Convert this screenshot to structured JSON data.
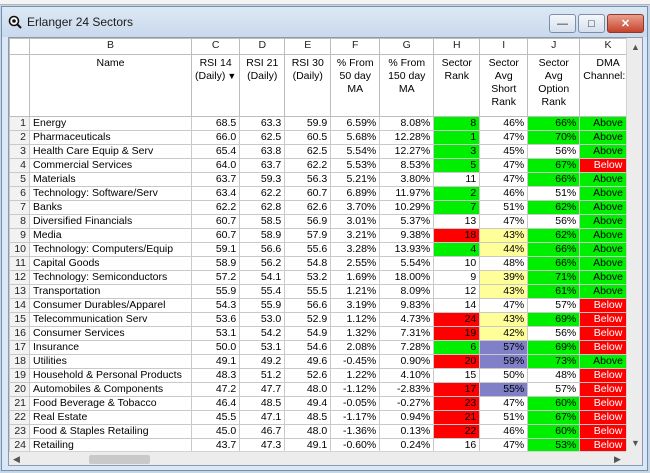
{
  "window": {
    "title": "Erlanger 24 Sectors",
    "minimize": "—",
    "maximize": "□",
    "close": "✕"
  },
  "colors": {
    "green": "#00ee00",
    "red": "#ff0000",
    "yellow": "#ffff99",
    "blue": "#8080c8",
    "white": "#ffffff"
  },
  "columns": [
    "B",
    "C",
    "D",
    "E",
    "F",
    "G",
    "H",
    "I",
    "J",
    "K"
  ],
  "headers": [
    "Name",
    "RSI 14 (Daily)",
    "RSI 21 (Daily)",
    "RSI 30 (Daily)",
    "% From 50 day MA",
    "% From 150 day MA",
    "Sector Rank",
    "Sector Avg Short Rank",
    "Sector Avg Option Rank",
    "DMA Channel:D"
  ],
  "rows": [
    {
      "n": "1",
      "name": "Energy",
      "rsi14": "68.5",
      "rsi21": "63.3",
      "rsi30": "59.9",
      "ma50": "6.59%",
      "ma150": "8.08%",
      "rank": "8",
      "rank_c": "green",
      "short": "46%",
      "short_c": "white",
      "opt": "66%",
      "opt_c": "green",
      "dma": "Above",
      "dma_c": "green"
    },
    {
      "n": "2",
      "name": "Pharmaceuticals",
      "rsi14": "66.0",
      "rsi21": "62.5",
      "rsi30": "60.5",
      "ma50": "5.68%",
      "ma150": "12.28%",
      "rank": "1",
      "rank_c": "green",
      "short": "47%",
      "short_c": "white",
      "opt": "70%",
      "opt_c": "green",
      "dma": "Above",
      "dma_c": "green"
    },
    {
      "n": "3",
      "name": "Health Care Equip & Serv",
      "rsi14": "65.4",
      "rsi21": "63.8",
      "rsi30": "62.5",
      "ma50": "5.54%",
      "ma150": "12.27%",
      "rank": "3",
      "rank_c": "green",
      "short": "45%",
      "short_c": "white",
      "opt": "56%",
      "opt_c": "white",
      "dma": "Above",
      "dma_c": "green"
    },
    {
      "n": "4",
      "name": "Commercial Services",
      "rsi14": "64.0",
      "rsi21": "63.7",
      "rsi30": "62.2",
      "ma50": "5.53%",
      "ma150": "8.53%",
      "rank": "5",
      "rank_c": "green",
      "short": "47%",
      "short_c": "white",
      "opt": "67%",
      "opt_c": "green",
      "dma": "Below",
      "dma_c": "red"
    },
    {
      "n": "5",
      "name": "Materials",
      "rsi14": "63.7",
      "rsi21": "59.3",
      "rsi30": "56.3",
      "ma50": "5.21%",
      "ma150": "3.80%",
      "rank": "11",
      "rank_c": "white",
      "short": "47%",
      "short_c": "white",
      "opt": "66%",
      "opt_c": "green",
      "dma": "Above",
      "dma_c": "green"
    },
    {
      "n": "6",
      "name": "Technology: Software/Serv",
      "rsi14": "63.4",
      "rsi21": "62.2",
      "rsi30": "60.7",
      "ma50": "6.89%",
      "ma150": "11.97%",
      "rank": "2",
      "rank_c": "green",
      "short": "46%",
      "short_c": "white",
      "opt": "51%",
      "opt_c": "white",
      "dma": "Above",
      "dma_c": "green"
    },
    {
      "n": "7",
      "name": "Banks",
      "rsi14": "62.2",
      "rsi21": "62.8",
      "rsi30": "62.6",
      "ma50": "3.70%",
      "ma150": "10.29%",
      "rank": "7",
      "rank_c": "green",
      "short": "51%",
      "short_c": "white",
      "opt": "62%",
      "opt_c": "green",
      "dma": "Above",
      "dma_c": "green"
    },
    {
      "n": "8",
      "name": "Diversified Financials",
      "rsi14": "60.7",
      "rsi21": "58.5",
      "rsi30": "56.9",
      "ma50": "3.01%",
      "ma150": "5.37%",
      "rank": "13",
      "rank_c": "white",
      "short": "47%",
      "short_c": "white",
      "opt": "56%",
      "opt_c": "white",
      "dma": "Above",
      "dma_c": "green"
    },
    {
      "n": "9",
      "name": "Media",
      "rsi14": "60.7",
      "rsi21": "58.9",
      "rsi30": "57.9",
      "ma50": "3.21%",
      "ma150": "9.38%",
      "rank": "18",
      "rank_c": "red",
      "short": "43%",
      "short_c": "yellow",
      "opt": "62%",
      "opt_c": "green",
      "dma": "Above",
      "dma_c": "green"
    },
    {
      "n": "10",
      "name": "Technology: Computers/Equip",
      "rsi14": "59.1",
      "rsi21": "56.6",
      "rsi30": "55.6",
      "ma50": "3.28%",
      "ma150": "13.93%",
      "rank": "4",
      "rank_c": "green",
      "short": "44%",
      "short_c": "yellow",
      "opt": "66%",
      "opt_c": "green",
      "dma": "Above",
      "dma_c": "green"
    },
    {
      "n": "11",
      "name": "Capital Goods",
      "rsi14": "58.9",
      "rsi21": "56.2",
      "rsi30": "54.8",
      "ma50": "2.55%",
      "ma150": "5.54%",
      "rank": "10",
      "rank_c": "white",
      "short": "48%",
      "short_c": "white",
      "opt": "66%",
      "opt_c": "green",
      "dma": "Above",
      "dma_c": "green"
    },
    {
      "n": "12",
      "name": "Technology: Semiconductors",
      "rsi14": "57.2",
      "rsi21": "54.1",
      "rsi30": "53.2",
      "ma50": "1.69%",
      "ma150": "18.00%",
      "rank": "9",
      "rank_c": "white",
      "short": "39%",
      "short_c": "yellow",
      "opt": "71%",
      "opt_c": "green",
      "dma": "Above",
      "dma_c": "green"
    },
    {
      "n": "13",
      "name": "Transportation",
      "rsi14": "55.9",
      "rsi21": "55.4",
      "rsi30": "55.5",
      "ma50": "1.21%",
      "ma150": "8.09%",
      "rank": "12",
      "rank_c": "white",
      "short": "43%",
      "short_c": "yellow",
      "opt": "61%",
      "opt_c": "green",
      "dma": "Above",
      "dma_c": "green"
    },
    {
      "n": "14",
      "name": "Consumer Durables/Apparel",
      "rsi14": "54.3",
      "rsi21": "55.9",
      "rsi30": "56.6",
      "ma50": "3.19%",
      "ma150": "9.83%",
      "rank": "14",
      "rank_c": "white",
      "short": "47%",
      "short_c": "white",
      "opt": "57%",
      "opt_c": "white",
      "dma": "Below",
      "dma_c": "red"
    },
    {
      "n": "15",
      "name": "Telecommunication Serv",
      "rsi14": "53.6",
      "rsi21": "53.0",
      "rsi30": "52.9",
      "ma50": "1.12%",
      "ma150": "4.73%",
      "rank": "24",
      "rank_c": "red",
      "short": "43%",
      "short_c": "yellow",
      "opt": "69%",
      "opt_c": "green",
      "dma": "Below",
      "dma_c": "red"
    },
    {
      "n": "16",
      "name": "Consumer Services",
      "rsi14": "53.1",
      "rsi21": "54.2",
      "rsi30": "54.9",
      "ma50": "1.32%",
      "ma150": "7.31%",
      "rank": "19",
      "rank_c": "red",
      "short": "42%",
      "short_c": "yellow",
      "opt": "56%",
      "opt_c": "white",
      "dma": "Below",
      "dma_c": "red"
    },
    {
      "n": "17",
      "name": "Insurance",
      "rsi14": "50.0",
      "rsi21": "53.1",
      "rsi30": "54.6",
      "ma50": "2.08%",
      "ma150": "7.28%",
      "rank": "6",
      "rank_c": "green",
      "short": "57%",
      "short_c": "blue",
      "opt": "69%",
      "opt_c": "green",
      "dma": "Below",
      "dma_c": "red"
    },
    {
      "n": "18",
      "name": "Utilities",
      "rsi14": "49.1",
      "rsi21": "49.2",
      "rsi30": "49.6",
      "ma50": "-0.45%",
      "ma150": "0.90%",
      "rank": "20",
      "rank_c": "red",
      "short": "59%",
      "short_c": "blue",
      "opt": "73%",
      "opt_c": "green",
      "dma": "Above",
      "dma_c": "green"
    },
    {
      "n": "19",
      "name": "Household & Personal Products",
      "rsi14": "48.3",
      "rsi21": "51.2",
      "rsi30": "52.6",
      "ma50": "1.22%",
      "ma150": "4.10%",
      "rank": "15",
      "rank_c": "white",
      "short": "50%",
      "short_c": "white",
      "opt": "48%",
      "opt_c": "white",
      "dma": "Below",
      "dma_c": "red"
    },
    {
      "n": "20",
      "name": "Automobiles & Components",
      "rsi14": "47.2",
      "rsi21": "47.7",
      "rsi30": "48.0",
      "ma50": "-1.12%",
      "ma150": "-2.83%",
      "rank": "17",
      "rank_c": "red",
      "short": "55%",
      "short_c": "blue",
      "opt": "57%",
      "opt_c": "white",
      "dma": "Below",
      "dma_c": "red"
    },
    {
      "n": "21",
      "name": "Food Beverage & Tobacco",
      "rsi14": "46.4",
      "rsi21": "48.5",
      "rsi30": "49.4",
      "ma50": "-0.05%",
      "ma150": "-0.27%",
      "rank": "23",
      "rank_c": "red",
      "short": "47%",
      "short_c": "white",
      "opt": "60%",
      "opt_c": "green",
      "dma": "Below",
      "dma_c": "red"
    },
    {
      "n": "22",
      "name": "Real Estate",
      "rsi14": "45.5",
      "rsi21": "47.1",
      "rsi30": "48.5",
      "ma50": "-1.17%",
      "ma150": "0.94%",
      "rank": "21",
      "rank_c": "red",
      "short": "51%",
      "short_c": "white",
      "opt": "67%",
      "opt_c": "green",
      "dma": "Below",
      "dma_c": "red"
    },
    {
      "n": "23",
      "name": "Food & Staples Retailing",
      "rsi14": "45.0",
      "rsi21": "46.7",
      "rsi30": "48.0",
      "ma50": "-1.36%",
      "ma150": "0.13%",
      "rank": "22",
      "rank_c": "red",
      "short": "46%",
      "short_c": "white",
      "opt": "60%",
      "opt_c": "green",
      "dma": "Below",
      "dma_c": "red"
    },
    {
      "n": "24",
      "name": "Retailing",
      "rsi14": "43.7",
      "rsi21": "47.3",
      "rsi30": "49.1",
      "ma50": "-0.60%",
      "ma150": "0.24%",
      "rank": "16",
      "rank_c": "white",
      "short": "47%",
      "short_c": "white",
      "opt": "53%",
      "opt_c": "green",
      "dma": "Below",
      "dma_c": "red"
    }
  ],
  "scrollbars": {
    "up": "▲",
    "down": "▼",
    "left": "◀",
    "right": "▶"
  }
}
